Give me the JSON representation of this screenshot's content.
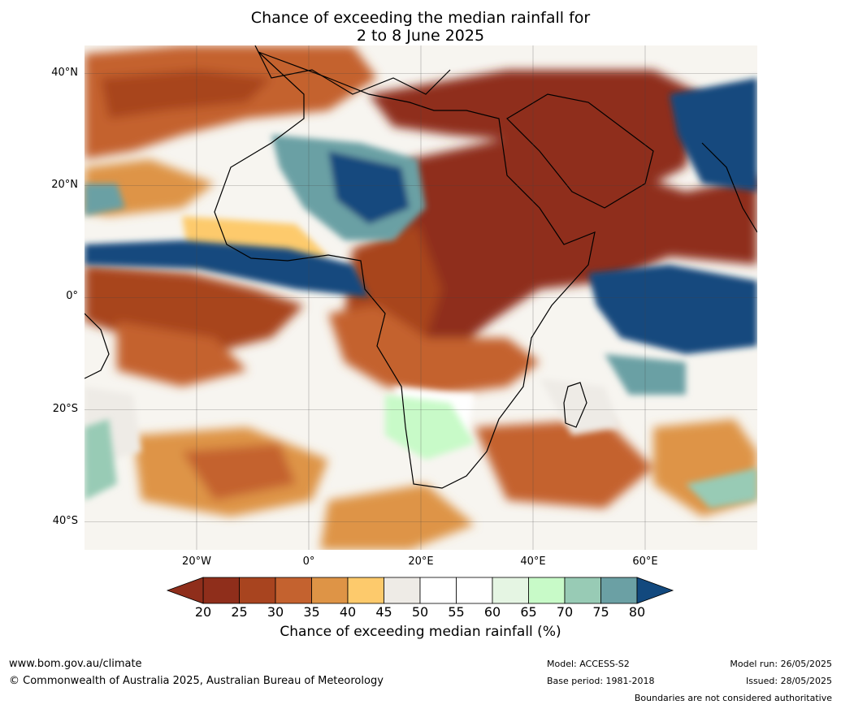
{
  "title_line1": "Chance of exceeding the median rainfall for",
  "title_line2": "2 to 8 June 2025",
  "lat_labels": [
    "40°N",
    "20°N",
    "0°",
    "20°S",
    "40°S"
  ],
  "lon_labels": [
    "20°W",
    "0°",
    "20°E",
    "40°E",
    "60°E"
  ],
  "map_extent": {
    "lon_min": -40,
    "lon_max": 80,
    "lat_min": -45,
    "lat_max": 45
  },
  "colorbar": {
    "label": "Chance of exceeding median rainfall (%)",
    "ticks": [
      "20",
      "25",
      "30",
      "35",
      "40",
      "45",
      "50",
      "55",
      "60",
      "65",
      "70",
      "75",
      "80"
    ],
    "colors": [
      "#8f2e1b",
      "#a8441f",
      "#c4622f",
      "#de9446",
      "#fdca6c",
      "#eeebe6",
      "#ffffff",
      "#ffffff",
      "#e5f5e3",
      "#c8fac8",
      "#98cbb5",
      "#6ba0a4",
      "#43778f"
    ],
    "under_color": "#8f2e1b",
    "over_color": "#12497e"
  },
  "footer": {
    "website": "www.bom.gov.au/climate",
    "copyright": "© Commonwealth of Australia 2025, Australian Bureau of Meteorology",
    "model": "Model: ACCESS-S2",
    "base_period": "Base period: 1981-2018",
    "model_run": "Model run: 26/05/2025",
    "issued": "Issued: 28/05/2025",
    "disclaimer": "Boundaries are not considered authoritative"
  }
}
